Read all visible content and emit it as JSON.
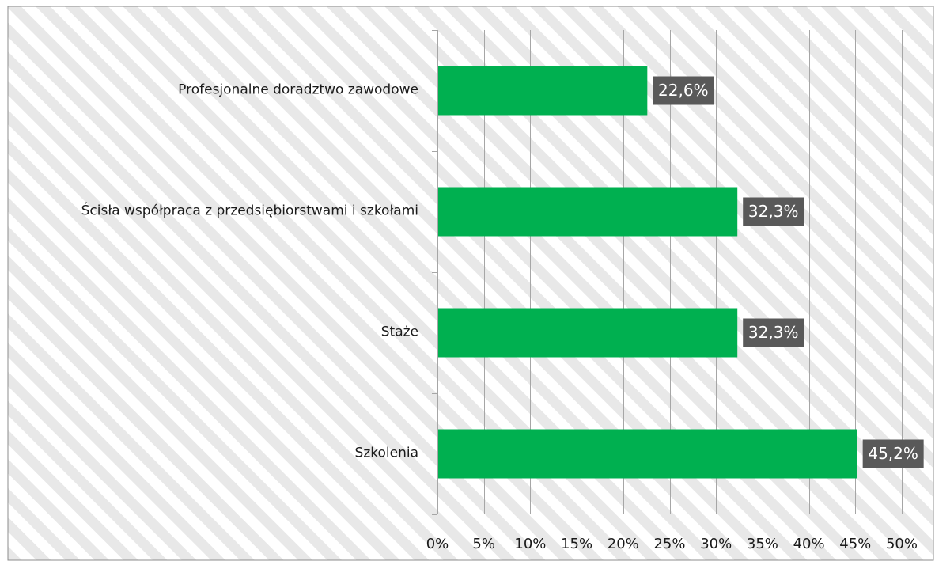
{
  "chart_data": {
    "type": "bar",
    "orientation": "horizontal",
    "categories": [
      "Profesjonalne doradztwo zawodowe",
      "Ścisła współpraca z przedsiębiorstwami i szkołami",
      "Staże",
      "Szkolenia"
    ],
    "values": [
      22.6,
      32.3,
      32.3,
      45.2
    ],
    "data_labels": [
      "22,6%",
      "32,3%",
      "32,3%",
      "45,2%"
    ],
    "xlim": [
      0,
      50
    ],
    "x_ticks": [
      0,
      5,
      10,
      15,
      20,
      25,
      30,
      35,
      40,
      45,
      50
    ],
    "x_tick_labels": [
      "0%",
      "5%",
      "10%",
      "15%",
      "20%",
      "25%",
      "30%",
      "35%",
      "40%",
      "45%",
      "50%"
    ],
    "title": "",
    "xlabel": "",
    "ylabel": "",
    "grid": true,
    "legend": "none",
    "colors": {
      "bar": "#00b050",
      "data_label_bg": "#595959",
      "data_label_text": "#ffffff",
      "gridline": "#a6a6a6",
      "stripe": "#e8e8e8",
      "text": "#1a1a1a",
      "frame": "#8c8c8c"
    }
  }
}
